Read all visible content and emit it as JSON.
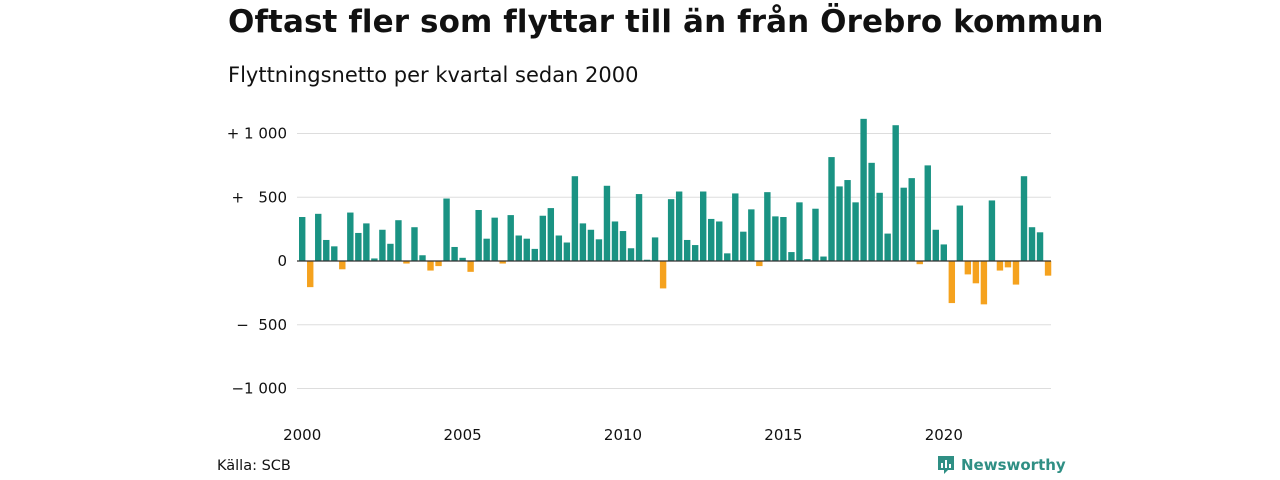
{
  "title": "Oftast fler som flyttar till än från Örebro kommun",
  "subtitle": "Flyttningsnetto per kvartal sedan 2000",
  "source": "Källa: SCB",
  "brand": "Newsworthy",
  "colors": {
    "positive": "#1a9383",
    "negative": "#f5a21e",
    "grid": "#dddddd",
    "zero_line": "#333333",
    "brand": "#2f8f84"
  },
  "chart_data": {
    "type": "bar",
    "ylim": [
      -1000,
      1000
    ],
    "yticks": [
      {
        "value": 1000,
        "label": "+ 1 000"
      },
      {
        "value": 500,
        "label": "+   500"
      },
      {
        "value": 0,
        "label": "0"
      },
      {
        "value": -500,
        "label": "−  500"
      },
      {
        "value": -1000,
        "label": "−1 000"
      }
    ],
    "xticks": [
      "2000",
      "2005",
      "2010",
      "2015",
      "2020"
    ],
    "start_year": 2000,
    "frequency": "quarter",
    "values": [
      345,
      -205,
      370,
      165,
      115,
      -65,
      380,
      220,
      295,
      20,
      245,
      135,
      320,
      -20,
      265,
      45,
      -75,
      -40,
      490,
      110,
      25,
      -85,
      400,
      175,
      340,
      -20,
      360,
      200,
      175,
      95,
      355,
      415,
      200,
      145,
      665,
      295,
      245,
      170,
      590,
      310,
      235,
      100,
      525,
      10,
      185,
      -215,
      485,
      545,
      165,
      125,
      545,
      330,
      310,
      60,
      530,
      230,
      405,
      -40,
      540,
      350,
      345,
      70,
      460,
      15,
      410,
      35,
      815,
      585,
      635,
      460,
      1115,
      770,
      535,
      215,
      1065,
      575,
      650,
      -25,
      750,
      245,
      130,
      -330,
      435,
      -105,
      -175,
      -340,
      475,
      -75,
      -50,
      -185,
      665,
      265,
      225,
      -115
    ]
  }
}
